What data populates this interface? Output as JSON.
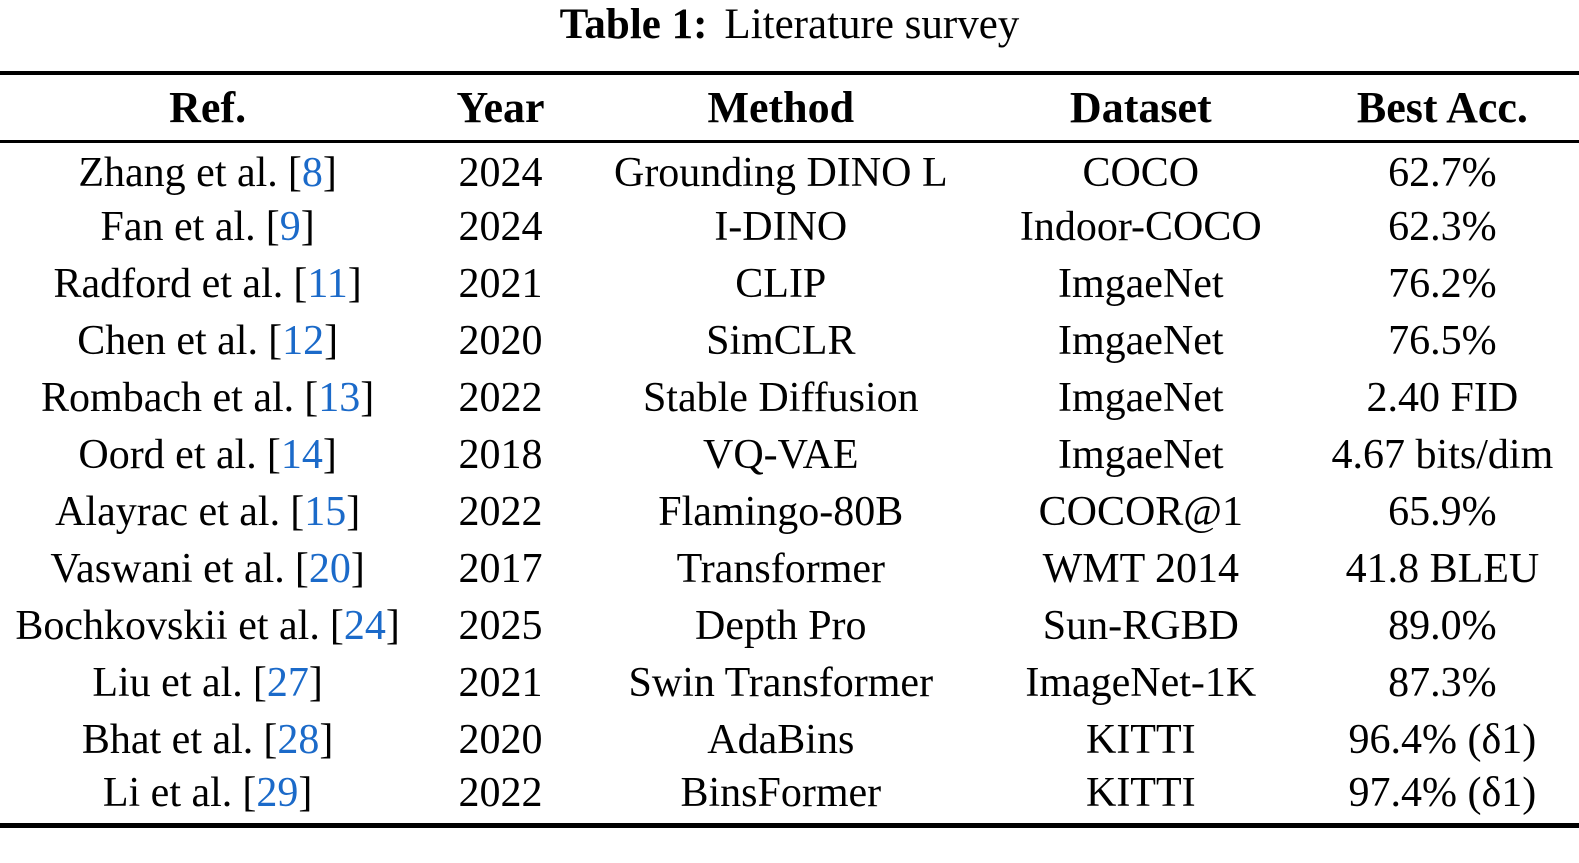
{
  "caption": {
    "label": "Table 1:",
    "title": "Literature survey"
  },
  "colors": {
    "background": "#ffffff",
    "text": "#000000",
    "rule": "#000000",
    "citation_link": "#1b6ac9"
  },
  "citation_format": {
    "open": "[",
    "close": "]"
  },
  "table": {
    "columns": [
      "Ref.",
      "Year",
      "Method",
      "Dataset",
      "Best Acc."
    ],
    "rows": [
      {
        "ref_name": "Zhang et al.",
        "cite": "8",
        "year": "2024",
        "method": "Grounding DINO L",
        "dataset": "COCO",
        "best_acc": "62.7%"
      },
      {
        "ref_name": "Fan et al.",
        "cite": "9",
        "year": "2024",
        "method": "I-DINO",
        "dataset": "Indoor-COCO",
        "best_acc": "62.3%"
      },
      {
        "ref_name": "Radford et al.",
        "cite": "11",
        "year": "2021",
        "method": "CLIP",
        "dataset": "ImgaeNet",
        "best_acc": "76.2%"
      },
      {
        "ref_name": "Chen et al.",
        "cite": "12",
        "year": "2020",
        "method": "SimCLR",
        "dataset": "ImgaeNet",
        "best_acc": "76.5%"
      },
      {
        "ref_name": "Rombach et al.",
        "cite": "13",
        "year": "2022",
        "method": "Stable Diffusion",
        "dataset": "ImgaeNet",
        "best_acc": "2.40 FID"
      },
      {
        "ref_name": "Oord et al.",
        "cite": "14",
        "year": "2018",
        "method": "VQ-VAE",
        "dataset": "ImgaeNet",
        "best_acc": "4.67 bits/dim"
      },
      {
        "ref_name": "Alayrac et al.",
        "cite": "15",
        "year": "2022",
        "method": "Flamingo-80B",
        "dataset": "COCOR@1",
        "best_acc": "65.9%"
      },
      {
        "ref_name": "Vaswani et al.",
        "cite": "20",
        "year": "2017",
        "method": "Transformer",
        "dataset": "WMT 2014",
        "best_acc": "41.8 BLEU"
      },
      {
        "ref_name": "Bochkovskii et al.",
        "cite": "24",
        "year": "2025",
        "method": "Depth Pro",
        "dataset": "Sun-RGBD",
        "best_acc": "89.0%"
      },
      {
        "ref_name": "Liu et al.",
        "cite": "27",
        "year": "2021",
        "method": "Swin Transformer",
        "dataset": "ImageNet-1K",
        "best_acc": "87.3%"
      },
      {
        "ref_name": "Bhat et al.",
        "cite": "28",
        "year": "2020",
        "method": "AdaBins",
        "dataset": "KITTI",
        "best_acc": "96.4% (δ1)"
      },
      {
        "ref_name": "Li et al.",
        "cite": "29",
        "year": "2022",
        "method": "BinsFormer",
        "dataset": "KITTI",
        "best_acc": "97.4% (δ1)"
      }
    ]
  }
}
